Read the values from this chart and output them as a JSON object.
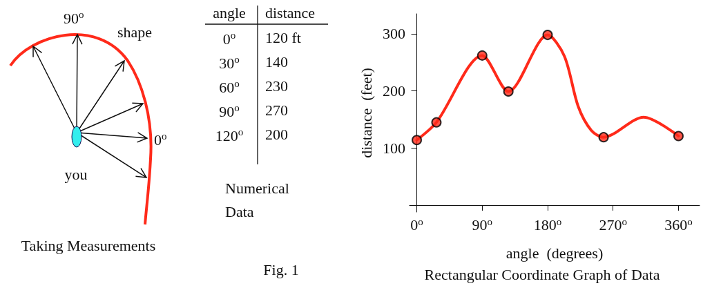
{
  "chart_data": [
    {
      "type": "other",
      "title": "Taking Measurements",
      "annotations": [
        "90$^{o}$",
        "shape",
        "0$^{o}$",
        "you"
      ]
    },
    {
      "type": "other",
      "title": "Numerical Data",
      "annotations": [
        "angle",
        "distance",
        "0$^{o}$",
        "120 ft",
        "30$^{o}$",
        "140",
        "60$^{o}$",
        "230",
        "90$^{o}$",
        "270",
        "120$^{o}$",
        "200",
        "Fig. 1"
      ]
    },
    {
      "type": "line",
      "title": "Rectangular Coordinate Graph of Data",
      "xlabel": "angle  (degrees)",
      "ylabel": "distance  (feet)",
      "xlim": [
        -10,
        389
      ],
      "ylim": [
        -12,
        335
      ],
      "xticks": [
        {
          "value": 0,
          "label": "0$^{o}$"
        },
        {
          "value": 90,
          "label": "90$^{o}$"
        },
        {
          "value": 180,
          "label": "180$^{o}$"
        },
        {
          "value": 270,
          "label": "270$^{o}$"
        },
        {
          "value": 360,
          "label": "360$^{o}$"
        }
      ],
      "yticks": [
        100,
        200,
        300
      ],
      "grid": false,
      "series": [
        {
          "type": "line",
          "color": "#ff2a1a",
          "marker": "none",
          "x": [
            0,
            27,
            90,
            126,
            180,
            203,
            222,
            240,
            257,
            312,
            360
          ],
          "values": [
            114,
            145,
            262,
            199,
            298,
            261,
            173,
            131,
            119,
            154,
            121
          ]
        },
        {
          "type": "scatter",
          "color": "#ff2a1a",
          "marker": "circle",
          "x": [
            0,
            27,
            90,
            126,
            180,
            257,
            360
          ],
          "values": [
            114,
            145,
            262,
            199,
            298,
            119,
            121
          ]
        }
      ]
    }
  ]
}
